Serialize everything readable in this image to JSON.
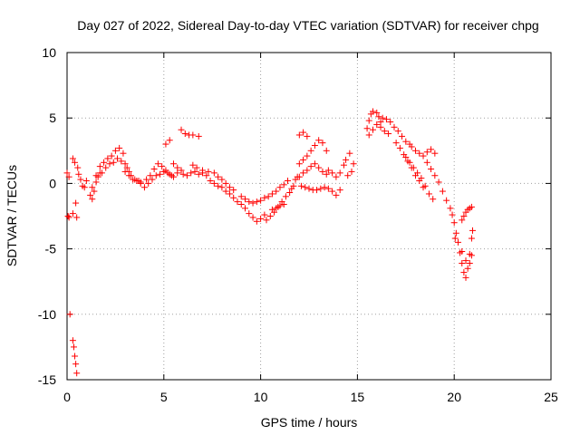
{
  "chart_data": {
    "type": "scatter",
    "title": "Day 027 of 2022, Sidereal Day-to-day VTEC variation (SDTVAR) for receiver chpg",
    "xlabel": "GPS time / hours",
    "ylabel": "SDTVAR / TECUs",
    "xlim": [
      0,
      25
    ],
    "ylim": [
      -15,
      10
    ],
    "xticks": [
      0,
      5,
      10,
      15,
      20,
      25
    ],
    "yticks": [
      -15,
      -10,
      -5,
      0,
      5,
      10
    ],
    "xtick_labels": [
      "0",
      "5",
      "10",
      "15",
      "20",
      "25"
    ],
    "ytick_labels": [
      "-15",
      "-10",
      "-5",
      "0",
      "5",
      "10"
    ],
    "grid": true,
    "marker": "+",
    "color": "#ff0000",
    "series": [
      {
        "name": "chpg",
        "points": [
          [
            0.0,
            0.8
          ],
          [
            0.05,
            -2.5
          ],
          [
            0.1,
            0.5
          ],
          [
            0.1,
            -2.6
          ],
          [
            0.15,
            -10.0
          ],
          [
            0.3,
            -2.3
          ],
          [
            0.3,
            -12.0
          ],
          [
            0.35,
            -12.5
          ],
          [
            0.4,
            -13.2
          ],
          [
            0.45,
            -13.8
          ],
          [
            0.5,
            -14.5
          ],
          [
            0.3,
            1.9
          ],
          [
            0.4,
            1.6
          ],
          [
            0.45,
            -1.5
          ],
          [
            0.5,
            -2.6
          ],
          [
            0.55,
            1.2
          ],
          [
            0.6,
            0.7
          ],
          [
            0.7,
            0.3
          ],
          [
            0.8,
            -0.2
          ],
          [
            0.9,
            -0.3
          ],
          [
            1.0,
            0.2
          ],
          [
            1.2,
            -0.9
          ],
          [
            1.3,
            -1.2
          ],
          [
            1.4,
            -0.6
          ],
          [
            1.5,
            0.1
          ],
          [
            1.6,
            0.5
          ],
          [
            1.7,
            0.8
          ],
          [
            1.3,
            -0.3
          ],
          [
            1.5,
            0.6
          ],
          [
            1.7,
            1.3
          ],
          [
            1.9,
            1.6
          ],
          [
            2.1,
            1.9
          ],
          [
            2.3,
            2.1
          ],
          [
            2.5,
            2.5
          ],
          [
            2.7,
            2.7
          ],
          [
            2.9,
            2.3
          ],
          [
            1.8,
            0.8
          ],
          [
            2.0,
            1.2
          ],
          [
            2.2,
            1.5
          ],
          [
            2.4,
            1.6
          ],
          [
            2.6,
            1.9
          ],
          [
            2.8,
            1.7
          ],
          [
            3.0,
            1.5
          ],
          [
            3.1,
            1.2
          ],
          [
            3.2,
            0.9
          ],
          [
            3.3,
            0.6
          ],
          [
            3.5,
            0.3
          ],
          [
            3.7,
            0.2
          ],
          [
            3.8,
            0.1
          ],
          [
            3.0,
            0.9
          ],
          [
            3.2,
            0.6
          ],
          [
            3.4,
            0.3
          ],
          [
            3.6,
            0.2
          ],
          [
            3.8,
            0.0
          ],
          [
            4.0,
            -0.3
          ],
          [
            4.1,
            0.3
          ],
          [
            4.3,
            0.6
          ],
          [
            4.5,
            1.1
          ],
          [
            4.7,
            1.5
          ],
          [
            4.9,
            1.3
          ],
          [
            5.1,
            1.0
          ],
          [
            5.3,
            0.7
          ],
          [
            5.5,
            0.5
          ],
          [
            5.7,
            0.8
          ],
          [
            4.2,
            0.0
          ],
          [
            4.4,
            0.3
          ],
          [
            4.6,
            0.6
          ],
          [
            4.8,
            0.7
          ],
          [
            5.0,
            0.9
          ],
          [
            5.2,
            0.8
          ],
          [
            5.4,
            0.6
          ],
          [
            5.5,
            1.5
          ],
          [
            5.7,
            1.2
          ],
          [
            5.9,
            1.0
          ],
          [
            5.1,
            3.0
          ],
          [
            5.3,
            3.3
          ],
          [
            5.9,
            4.1
          ],
          [
            6.1,
            3.8
          ],
          [
            6.3,
            3.7
          ],
          [
            6.5,
            3.7
          ],
          [
            6.8,
            3.6
          ],
          [
            6.0,
            0.7
          ],
          [
            6.2,
            0.6
          ],
          [
            6.4,
            0.8
          ],
          [
            6.6,
            0.9
          ],
          [
            6.8,
            0.7
          ],
          [
            7.0,
            0.8
          ],
          [
            7.2,
            0.6
          ],
          [
            6.5,
            1.4
          ],
          [
            6.7,
            1.2
          ],
          [
            7.0,
            1.0
          ],
          [
            7.3,
            0.9
          ],
          [
            7.4,
            0.2
          ],
          [
            7.6,
            0.0
          ],
          [
            7.8,
            -0.2
          ],
          [
            8.0,
            -0.3
          ],
          [
            8.2,
            -0.6
          ],
          [
            8.4,
            -0.8
          ],
          [
            8.6,
            -1.1
          ],
          [
            8.8,
            -1.4
          ],
          [
            7.6,
            0.8
          ],
          [
            7.8,
            0.5
          ],
          [
            8.0,
            0.3
          ],
          [
            8.2,
            0.0
          ],
          [
            8.4,
            -0.3
          ],
          [
            8.6,
            -0.5
          ],
          [
            9.0,
            -1.6
          ],
          [
            9.2,
            -1.9
          ],
          [
            9.4,
            -2.3
          ],
          [
            9.6,
            -2.6
          ],
          [
            9.8,
            -2.9
          ],
          [
            10.0,
            -2.7
          ],
          [
            10.2,
            -2.4
          ],
          [
            9.0,
            -1.0
          ],
          [
            9.2,
            -1.2
          ],
          [
            9.4,
            -1.4
          ],
          [
            9.6,
            -1.5
          ],
          [
            9.8,
            -1.4
          ],
          [
            10.0,
            -1.3
          ],
          [
            10.2,
            -1.1
          ],
          [
            10.3,
            -2.8
          ],
          [
            10.5,
            -2.5
          ],
          [
            10.7,
            -2.2
          ],
          [
            10.9,
            -1.8
          ],
          [
            11.1,
            -1.4
          ],
          [
            11.3,
            -1.0
          ],
          [
            11.5,
            -0.7
          ],
          [
            10.4,
            -1.0
          ],
          [
            10.6,
            -0.8
          ],
          [
            10.8,
            -0.6
          ],
          [
            11.0,
            -0.3
          ],
          [
            11.2,
            -0.1
          ],
          [
            11.4,
            0.2
          ],
          [
            10.6,
            -2.0
          ],
          [
            10.8,
            -1.9
          ],
          [
            11.0,
            -1.7
          ],
          [
            11.2,
            -1.6
          ],
          [
            11.6,
            -0.4
          ],
          [
            11.7,
            -0.2
          ],
          [
            11.8,
            0.3
          ],
          [
            11.9,
            0.5
          ],
          [
            12.0,
            1.5
          ],
          [
            12.2,
            1.8
          ],
          [
            12.4,
            2.1
          ],
          [
            12.6,
            2.5
          ],
          [
            12.8,
            2.9
          ],
          [
            13.0,
            3.3
          ],
          [
            13.2,
            3.1
          ],
          [
            13.4,
            2.5
          ],
          [
            12.0,
            0.5
          ],
          [
            12.2,
            0.8
          ],
          [
            12.4,
            1.0
          ],
          [
            12.6,
            1.3
          ],
          [
            12.8,
            1.5
          ],
          [
            13.0,
            1.2
          ],
          [
            13.2,
            0.9
          ],
          [
            13.4,
            0.7
          ],
          [
            12.1,
            -0.2
          ],
          [
            12.3,
            -0.3
          ],
          [
            12.5,
            -0.4
          ],
          [
            12.7,
            -0.5
          ],
          [
            12.9,
            -0.5
          ],
          [
            13.1,
            -0.4
          ],
          [
            13.3,
            -0.3
          ],
          [
            13.5,
            1.0
          ],
          [
            13.7,
            0.8
          ],
          [
            13.9,
            0.5
          ],
          [
            14.1,
            0.8
          ],
          [
            14.3,
            1.4
          ],
          [
            13.5,
            -0.4
          ],
          [
            13.7,
            -0.6
          ],
          [
            13.9,
            -0.9
          ],
          [
            14.1,
            -0.5
          ],
          [
            12.0,
            3.7
          ],
          [
            12.2,
            3.9
          ],
          [
            12.4,
            3.6
          ],
          [
            14.4,
            1.8
          ],
          [
            14.5,
            0.6
          ],
          [
            14.6,
            2.3
          ],
          [
            14.7,
            0.9
          ],
          [
            14.8,
            1.5
          ],
          [
            15.5,
            4.2
          ],
          [
            15.6,
            4.8
          ],
          [
            15.7,
            5.3
          ],
          [
            15.8,
            5.5
          ],
          [
            16.0,
            5.4
          ],
          [
            16.1,
            5.1
          ],
          [
            16.2,
            4.7
          ],
          [
            15.6,
            3.7
          ],
          [
            15.8,
            4.1
          ],
          [
            16.0,
            4.5
          ],
          [
            16.2,
            4.3
          ],
          [
            16.4,
            4.0
          ],
          [
            16.6,
            3.8
          ],
          [
            16.3,
            5.0
          ],
          [
            16.5,
            4.9
          ],
          [
            16.7,
            4.7
          ],
          [
            16.9,
            4.3
          ],
          [
            17.1,
            4.0
          ],
          [
            17.3,
            3.6
          ],
          [
            17.5,
            3.2
          ],
          [
            17.7,
            3.0
          ],
          [
            17.0,
            3.1
          ],
          [
            17.2,
            2.7
          ],
          [
            17.4,
            2.2
          ],
          [
            17.6,
            1.7
          ],
          [
            17.8,
            1.2
          ],
          [
            18.0,
            0.6
          ],
          [
            18.2,
            0.2
          ],
          [
            18.4,
            -0.3
          ],
          [
            17.8,
            2.8
          ],
          [
            18.0,
            2.5
          ],
          [
            18.2,
            2.3
          ],
          [
            18.4,
            2.1
          ],
          [
            18.6,
            2.4
          ],
          [
            18.8,
            2.6
          ],
          [
            19.0,
            2.3
          ],
          [
            17.5,
            2.0
          ],
          [
            17.7,
            1.6
          ],
          [
            17.9,
            1.2
          ],
          [
            18.1,
            0.8
          ],
          [
            18.3,
            0.4
          ],
          [
            18.5,
            -0.2
          ],
          [
            18.7,
            -0.8
          ],
          [
            18.9,
            -1.2
          ],
          [
            18.6,
            1.6
          ],
          [
            18.8,
            1.1
          ],
          [
            19.0,
            0.6
          ],
          [
            19.2,
            0.1
          ],
          [
            19.4,
            -0.6
          ],
          [
            19.6,
            -1.3
          ],
          [
            19.8,
            -1.9
          ],
          [
            19.9,
            -2.4
          ],
          [
            20.0,
            -3.0
          ],
          [
            20.05,
            -4.2
          ],
          [
            20.1,
            -3.8
          ],
          [
            20.2,
            -4.5
          ],
          [
            20.3,
            -5.3
          ],
          [
            20.4,
            -6.1
          ],
          [
            20.5,
            -6.8
          ],
          [
            20.6,
            -7.2
          ],
          [
            20.7,
            -6.5
          ],
          [
            20.8,
            -5.4
          ],
          [
            20.9,
            -4.2
          ],
          [
            20.95,
            -3.6
          ],
          [
            20.4,
            -2.8
          ],
          [
            20.5,
            -2.5
          ],
          [
            20.6,
            -2.2
          ],
          [
            20.7,
            -2.0
          ],
          [
            20.8,
            -1.9
          ],
          [
            20.9,
            -1.8
          ],
          [
            20.4,
            -5.2
          ],
          [
            20.6,
            -5.9
          ],
          [
            20.8,
            -6.1
          ],
          [
            20.9,
            -5.5
          ]
        ]
      }
    ]
  }
}
